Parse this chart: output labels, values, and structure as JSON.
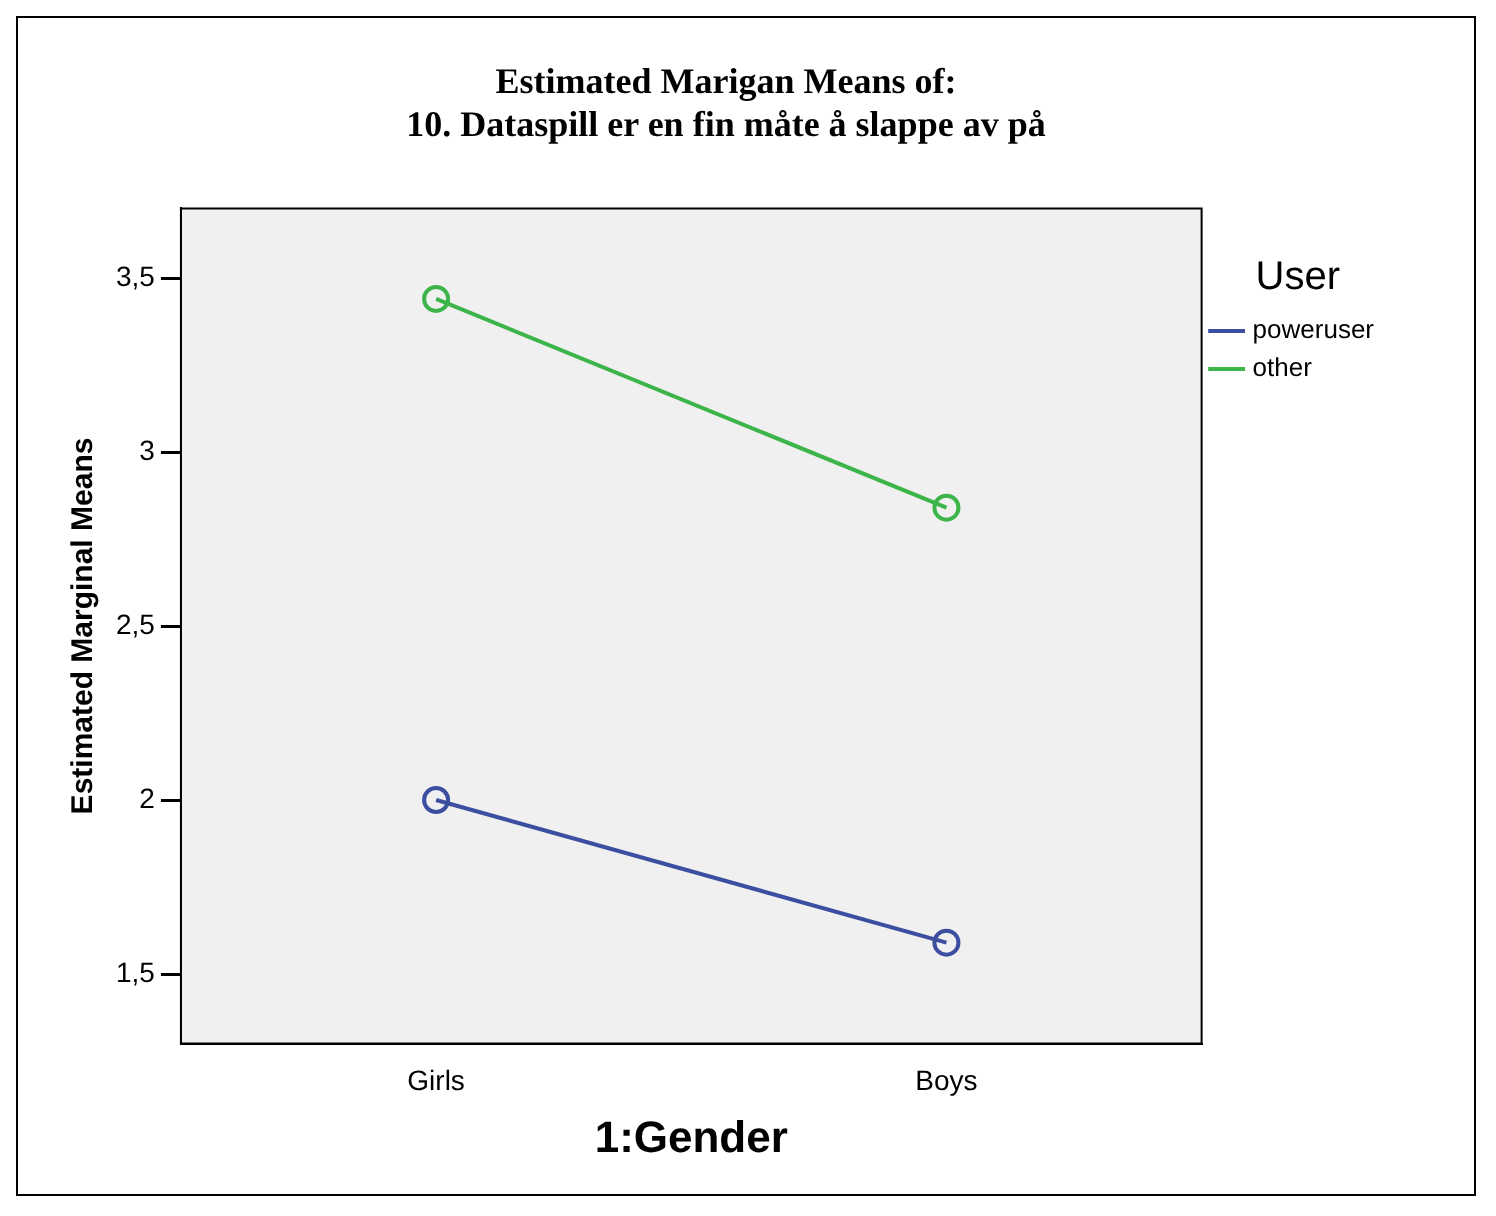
{
  "chart_data": {
    "type": "line",
    "title": "Estimated Marigan Means of:\n10. Dataspill er en fin måte å slappe av på",
    "xlabel": "1:Gender",
    "ylabel": "Estimated Marginal Means",
    "legend_title": "User",
    "categories": [
      "Girls",
      "Boys"
    ],
    "series": [
      {
        "name": "poweruser",
        "color": "#3c4ea0",
        "values": [
          2.0,
          1.59
        ]
      },
      {
        "name": "other",
        "color": "#3cb44a",
        "values": [
          3.44,
          2.84
        ]
      }
    ],
    "ylim": [
      1.3,
      3.7
    ],
    "yticks": [
      {
        "value": 1.5,
        "label": "1,5"
      },
      {
        "value": 2,
        "label": "2"
      },
      {
        "value": 2.5,
        "label": "2,5"
      },
      {
        "value": 3,
        "label": "3"
      },
      {
        "value": 3.5,
        "label": "3,5"
      }
    ],
    "grid": false,
    "legend": "right",
    "marker": "circle",
    "line_style": "solid"
  }
}
